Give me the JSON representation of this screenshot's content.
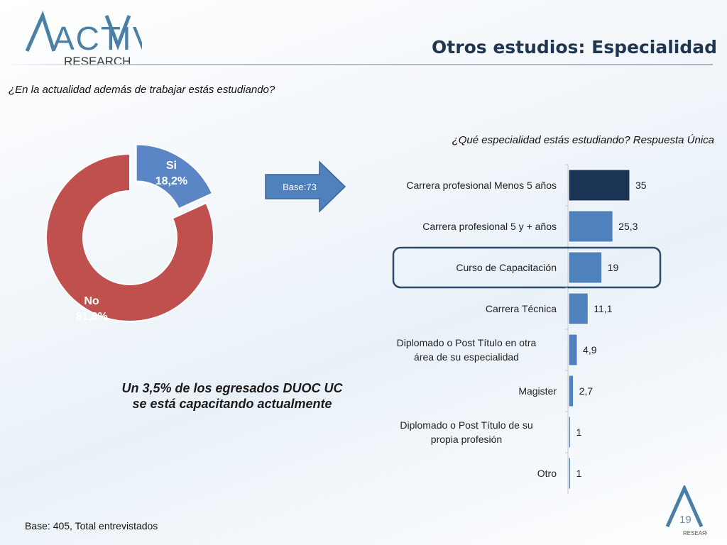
{
  "header": {
    "logo_main": "ACTIVA",
    "logo_sub": "RESEARCH",
    "title": "Otros estudios: Especialidad"
  },
  "question_main": "¿En la actualidad además de trabajar estás estudiando?",
  "question_sub": "¿Qué especialidad estás estudiando? Respuesta Única",
  "base_label": "Base:73",
  "callout": "Un 3,5% de los egresados DUOC UC se está capacitando actualmente",
  "footer": {
    "base": "Base: 405, Total entrevistados",
    "page_number": "19",
    "logo_sub": "RESEARCH"
  },
  "colors": {
    "si": "#5a86c5",
    "no": "#c0504d",
    "bar_top": "#1c3557",
    "bar": "#4f81bd",
    "highlight_border": "#2d4a6b",
    "title": "#1f3550"
  },
  "chart_data": [
    {
      "type": "pie",
      "variant": "donut",
      "labels": [
        "Si",
        "No"
      ],
      "values": [
        18.2,
        81.8
      ],
      "value_labels": [
        "18,2%",
        "81,8%"
      ],
      "exploded": "Si"
    },
    {
      "type": "bar",
      "orientation": "horizontal",
      "categories": [
        "Carrera profesional Menos 5 años",
        "Carrera profesional 5 y + años",
        "Curso de Capacitación",
        "Carrera Técnica",
        "Diplomado o Post Título en otra área de su especialidad",
        "Magister",
        "Diplomado o Post Título de su propia profesión",
        "Otro"
      ],
      "values": [
        35,
        25.3,
        19,
        11.1,
        4.9,
        2.7,
        1,
        1
      ],
      "value_labels": [
        "35",
        "25,3",
        "19",
        "11,1",
        "4,9",
        "2,7",
        "1",
        "1"
      ],
      "highlighted": "Curso de Capacitación",
      "xlim": [
        0,
        35
      ]
    }
  ]
}
